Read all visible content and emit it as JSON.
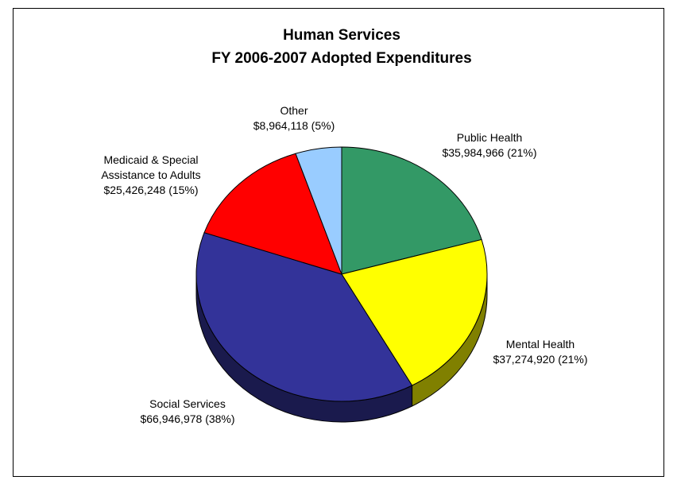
{
  "chart_data": {
    "type": "pie",
    "title_lines": [
      "Human Services",
      "FY 2006-2007 Adopted Expenditures"
    ],
    "slices": [
      {
        "name": "Public Health",
        "value": 35984966,
        "label_lines": [
          "Public Health",
          "$35,984,966 (21%)"
        ],
        "color": "#339966"
      },
      {
        "name": "Mental Health",
        "value": 37274920,
        "label_lines": [
          "Mental Health",
          "$37,274,920 (21%)"
        ],
        "color": "#ffff00"
      },
      {
        "name": "Social Services",
        "value": 66946978,
        "label_lines": [
          "Social Services",
          "$66,946,978 (38%)"
        ],
        "color": "#333399"
      },
      {
        "name": "Medicaid & Special Assistance to Adults",
        "value": 25426248,
        "label_lines": [
          "Medicaid & Special",
          "Assistance to Adults",
          "$25,426,248 (15%)"
        ],
        "color": "#ff0000"
      },
      {
        "name": "Other",
        "value": 8964118,
        "label_lines": [
          "Other",
          "$8,964,118 (5%)"
        ],
        "color": "#99ccff"
      }
    ],
    "legend": "none"
  }
}
